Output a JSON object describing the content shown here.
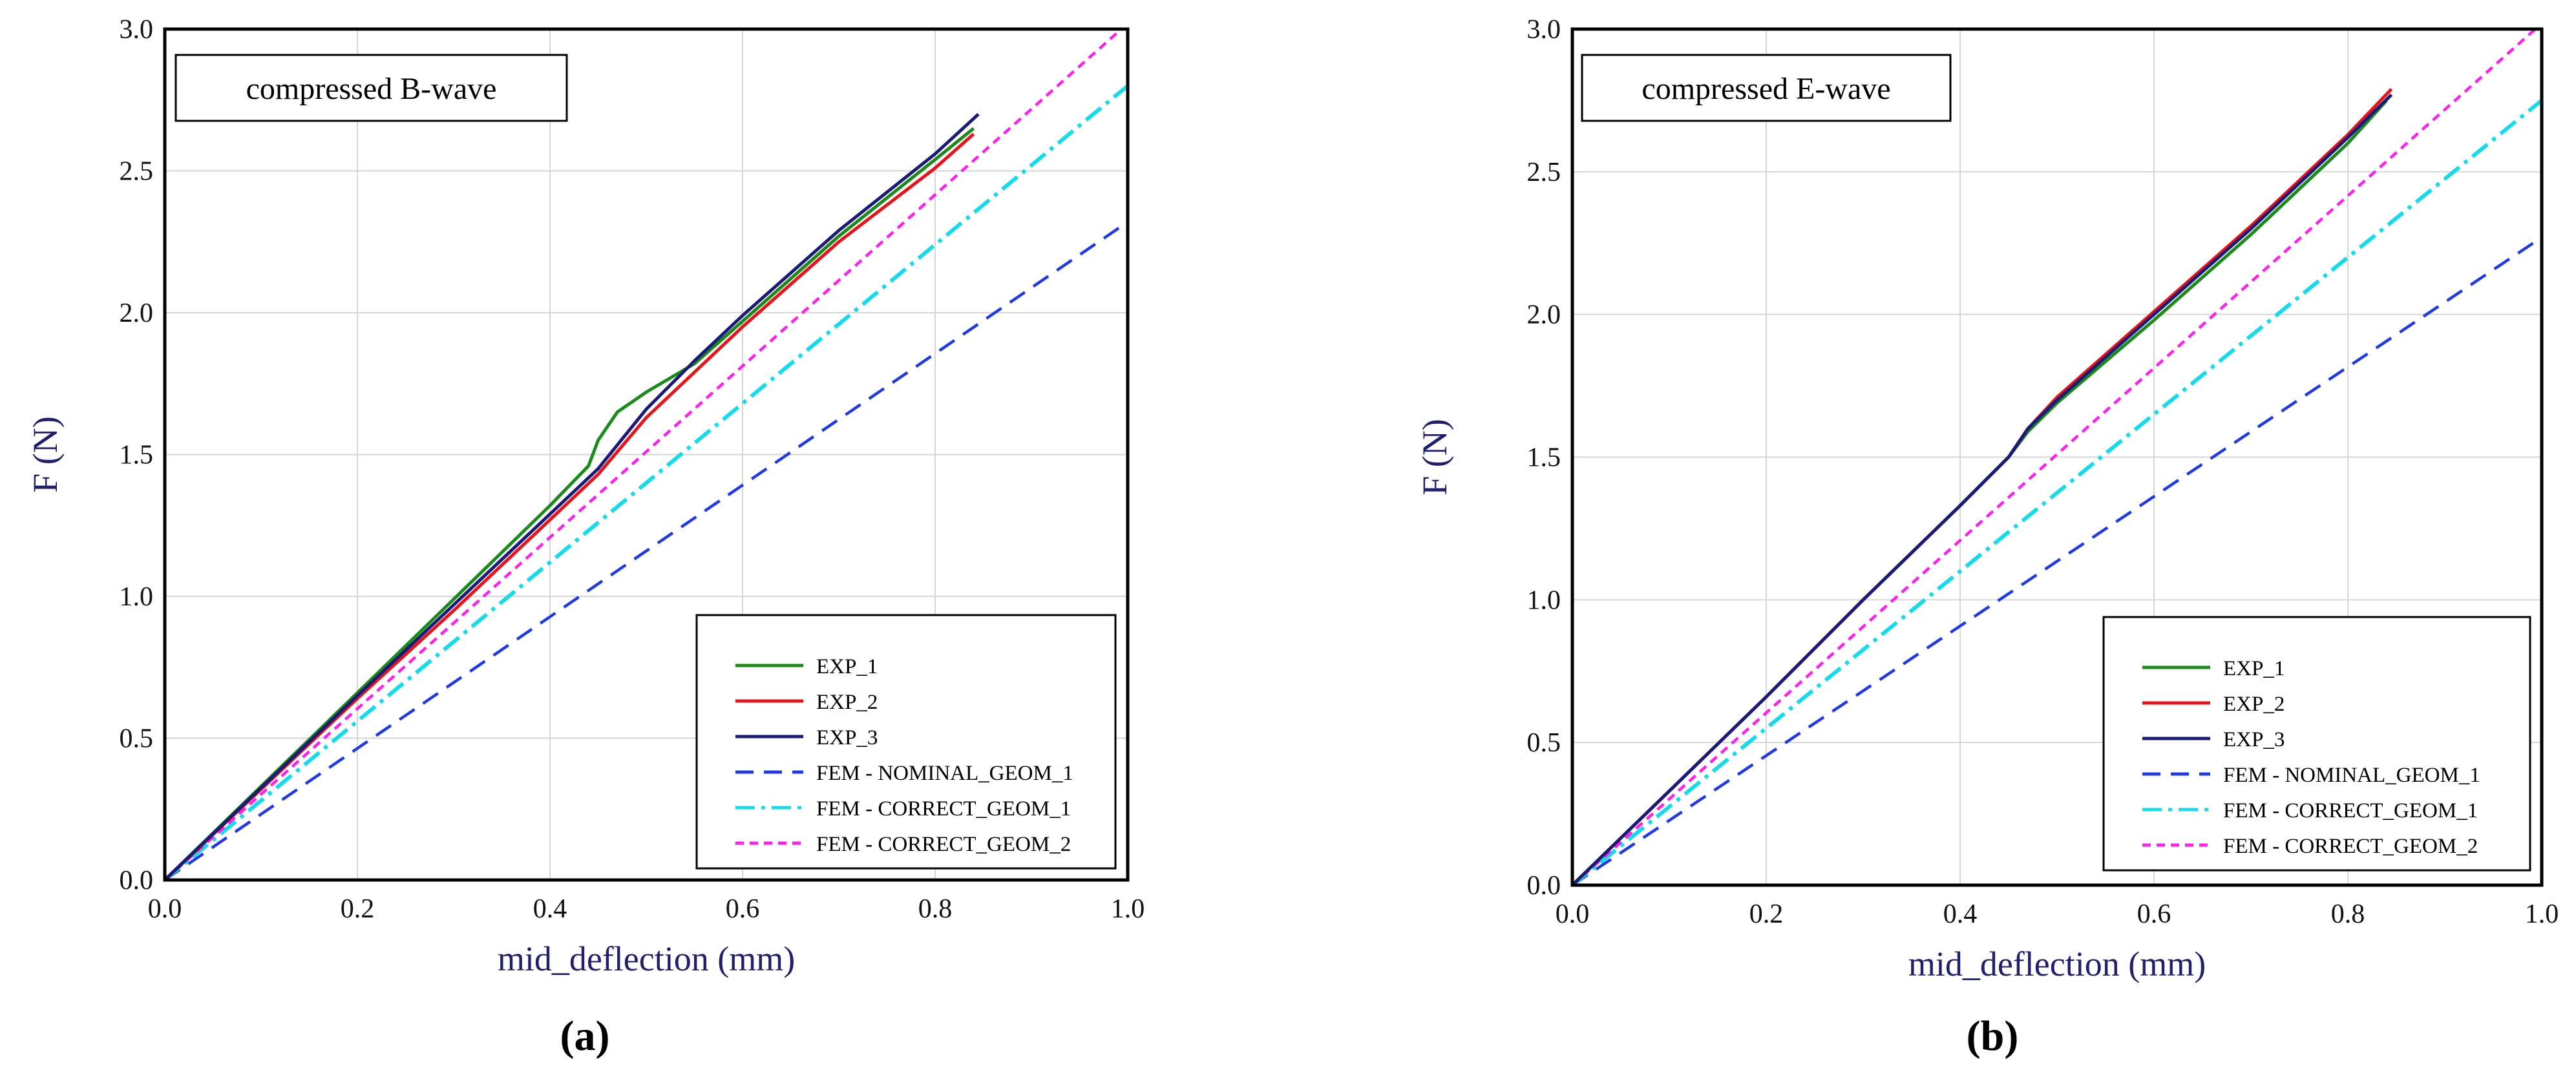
{
  "chart_data": [
    {
      "type": "line",
      "panel_label": "(a)",
      "title": "compressed B-wave",
      "xlabel": "mid_deflection (mm)",
      "ylabel": "F (N)",
      "xlim": [
        0.0,
        1.0
      ],
      "ylim": [
        0.0,
        3.0
      ],
      "xticks": [
        "0.0",
        "0.2",
        "0.4",
        "0.6",
        "0.8",
        "1.0"
      ],
      "yticks": [
        "0.0",
        "0.5",
        "1.0",
        "1.5",
        "2.0",
        "2.5",
        "3.0"
      ],
      "grid": true,
      "legend_position": "bottom-right",
      "series": [
        {
          "name": "EXP_1",
          "color": "#1a8a1a",
          "style": "solid",
          "x": [
            0,
            0.1,
            0.2,
            0.3,
            0.4,
            0.44,
            0.45,
            0.47,
            0.5,
            0.55,
            0.6,
            0.7,
            0.8,
            0.84
          ],
          "y": [
            0,
            0.33,
            0.66,
            0.99,
            1.32,
            1.46,
            1.55,
            1.65,
            1.72,
            1.82,
            1.97,
            2.27,
            2.54,
            2.65
          ]
        },
        {
          "name": "EXP_2",
          "color": "#e8141c",
          "style": "solid",
          "x": [
            0,
            0.1,
            0.2,
            0.3,
            0.4,
            0.45,
            0.5,
            0.55,
            0.6,
            0.7,
            0.8,
            0.84
          ],
          "y": [
            0,
            0.32,
            0.64,
            0.95,
            1.27,
            1.43,
            1.63,
            1.79,
            1.95,
            2.25,
            2.51,
            2.63
          ]
        },
        {
          "name": "EXP_3",
          "color": "#1a1a78",
          "style": "solid",
          "x": [
            0,
            0.1,
            0.2,
            0.3,
            0.4,
            0.45,
            0.5,
            0.55,
            0.6,
            0.7,
            0.8,
            0.845
          ],
          "y": [
            0,
            0.325,
            0.65,
            0.97,
            1.29,
            1.45,
            1.66,
            1.83,
            1.99,
            2.29,
            2.56,
            2.7
          ]
        },
        {
          "name": "FEM - NOMINAL_GEOM_1",
          "color": "#1f3ae6",
          "style": "dash",
          "x": [
            0,
            1.0
          ],
          "y": [
            0,
            2.32
          ]
        },
        {
          "name": "FEM - CORRECT_GEOM_1",
          "color": "#14dcea",
          "style": "dashdot",
          "x": [
            0,
            1.0
          ],
          "y": [
            0,
            2.8
          ]
        },
        {
          "name": "FEM - CORRECT_GEOM_2",
          "color": "#ff20f0",
          "style": "shortdash",
          "x": [
            0,
            1.0
          ],
          "y": [
            0,
            3.02
          ]
        }
      ]
    },
    {
      "type": "line",
      "panel_label": "(b)",
      "title": "compressed E-wave",
      "xlabel": "mid_deflection (mm)",
      "ylabel": "F (N)",
      "xlim": [
        0.0,
        1.0
      ],
      "ylim": [
        0.0,
        3.0
      ],
      "xticks": [
        "0.0",
        "0.2",
        "0.4",
        "0.6",
        "0.8",
        "1.0"
      ],
      "yticks": [
        "0.0",
        "0.5",
        "1.0",
        "1.5",
        "2.0",
        "2.5",
        "3.0"
      ],
      "grid": true,
      "legend_position": "bottom-right",
      "series": [
        {
          "name": "EXP_1",
          "color": "#1a8a1a",
          "style": "solid",
          "x": [
            0,
            0.1,
            0.2,
            0.3,
            0.4,
            0.45,
            0.47,
            0.5,
            0.6,
            0.7,
            0.8,
            0.84
          ],
          "y": [
            0,
            0.33,
            0.66,
            1.0,
            1.33,
            1.5,
            1.59,
            1.69,
            1.98,
            2.28,
            2.6,
            2.75
          ]
        },
        {
          "name": "EXP_2",
          "color": "#e8141c",
          "style": "solid",
          "x": [
            0,
            0.1,
            0.2,
            0.3,
            0.4,
            0.45,
            0.47,
            0.5,
            0.6,
            0.7,
            0.8,
            0.845
          ],
          "y": [
            0,
            0.33,
            0.66,
            1.0,
            1.33,
            1.5,
            1.6,
            1.71,
            2.01,
            2.31,
            2.63,
            2.79
          ]
        },
        {
          "name": "EXP_3",
          "color": "#1a1a78",
          "style": "solid",
          "x": [
            0,
            0.1,
            0.2,
            0.3,
            0.4,
            0.45,
            0.47,
            0.5,
            0.6,
            0.7,
            0.8,
            0.845
          ],
          "y": [
            0,
            0.33,
            0.66,
            1.0,
            1.33,
            1.5,
            1.6,
            1.7,
            2.0,
            2.3,
            2.62,
            2.77
          ]
        },
        {
          "name": "FEM - NOMINAL_GEOM_1",
          "color": "#1f3ae6",
          "style": "dash",
          "x": [
            0,
            1.0
          ],
          "y": [
            0,
            2.27
          ]
        },
        {
          "name": "FEM - CORRECT_GEOM_1",
          "color": "#14dcea",
          "style": "dashdot",
          "x": [
            0,
            1.0
          ],
          "y": [
            0,
            2.75
          ]
        },
        {
          "name": "FEM - CORRECT_GEOM_2",
          "color": "#ff20f0",
          "style": "shortdash",
          "x": [
            0,
            1.0
          ],
          "y": [
            0,
            3.02
          ]
        }
      ]
    }
  ]
}
